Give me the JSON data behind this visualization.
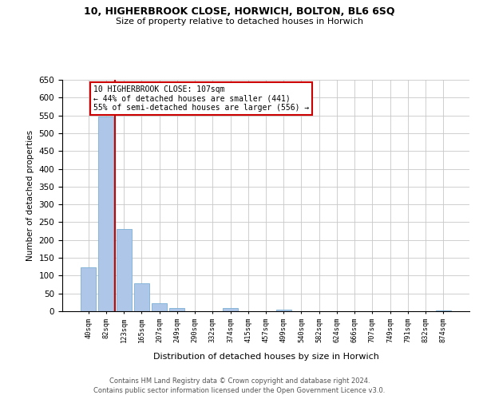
{
  "title1": "10, HIGHERBROOK CLOSE, HORWICH, BOLTON, BL6 6SQ",
  "title2": "Size of property relative to detached houses in Horwich",
  "xlabel": "Distribution of detached houses by size in Horwich",
  "ylabel": "Number of detached properties",
  "bar_labels": [
    "40sqm",
    "82sqm",
    "123sqm",
    "165sqm",
    "207sqm",
    "249sqm",
    "290sqm",
    "332sqm",
    "374sqm",
    "415sqm",
    "457sqm",
    "499sqm",
    "540sqm",
    "582sqm",
    "624sqm",
    "666sqm",
    "707sqm",
    "749sqm",
    "791sqm",
    "832sqm",
    "874sqm"
  ],
  "bar_values": [
    124,
    546,
    230,
    78,
    23,
    9,
    0,
    0,
    8,
    0,
    0,
    5,
    0,
    0,
    0,
    0,
    0,
    0,
    0,
    0,
    3
  ],
  "bar_color": "#aec6e8",
  "bar_edge_color": "#7bafd4",
  "vline_color": "#cc0000",
  "annotation_text": "10 HIGHERBROOK CLOSE: 107sqm\n← 44% of detached houses are smaller (441)\n55% of semi-detached houses are larger (556) →",
  "annotation_box_color": "#ffffff",
  "annotation_box_edge": "#cc0000",
  "ylim": [
    0,
    650
  ],
  "yticks": [
    0,
    50,
    100,
    150,
    200,
    250,
    300,
    350,
    400,
    450,
    500,
    550,
    600,
    650
  ],
  "footer1": "Contains HM Land Registry data © Crown copyright and database right 2024.",
  "footer2": "Contains public sector information licensed under the Open Government Licence v3.0.",
  "bg_color": "#ffffff",
  "grid_color": "#c8c8c8"
}
